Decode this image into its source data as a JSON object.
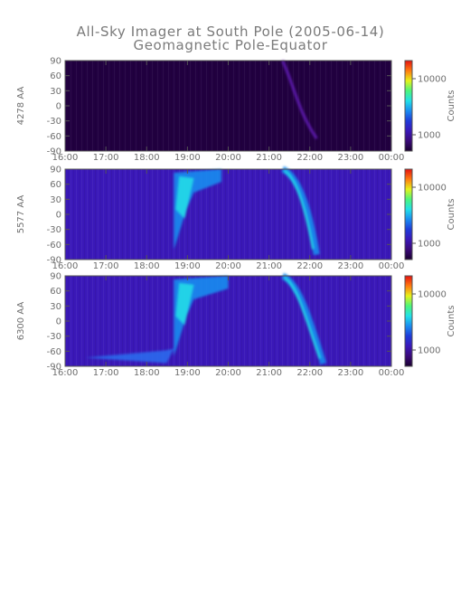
{
  "figure": {
    "title": "All-Sky Imager at South Pole (2005-06-14)",
    "subtitle": "Geomagnetic Pole-Equator"
  },
  "colors": {
    "background_dark": "#210040",
    "base_purple": "#3a18b8",
    "colormap": [
      "#1a0030",
      "#3a0a78",
      "#3a18b8",
      "#1f3bd8",
      "#1a8cf0",
      "#22e0e8",
      "#4cf57a",
      "#e6f21a",
      "#ff7a10",
      "#e41010"
    ]
  },
  "chart_data": [
    {
      "type": "heatmap",
      "panel": "4278",
      "ylabel": "4278 AA",
      "x_ticks": [
        "16:00",
        "17:00",
        "18:00",
        "19:00",
        "20:00",
        "21:00",
        "22:00",
        "23:00",
        "00:00"
      ],
      "y_ticks": [
        "90",
        "60",
        "30",
        "0",
        "-30",
        "-60",
        "-90"
      ],
      "ylim": [
        -90,
        90
      ],
      "xlim": [
        "16:00",
        "00:00"
      ],
      "colorbar": {
        "label": "Counts",
        "ticks": [
          "10000",
          "1000"
        ],
        "scale": "log"
      },
      "features": [
        {
          "description": "faint auroral arc",
          "time_range": [
            "21:20",
            "22:10"
          ],
          "lat_range": [
            -65,
            90
          ]
        }
      ]
    },
    {
      "type": "heatmap",
      "panel": "5577",
      "ylabel": "5577 AA",
      "x_ticks": [
        "16:00",
        "17:00",
        "18:00",
        "19:00",
        "20:00",
        "21:00",
        "22:00",
        "23:00",
        "00:00"
      ],
      "y_ticks": [
        "90",
        "60",
        "30",
        "0",
        "-30",
        "-60",
        "-90"
      ],
      "ylim": [
        -90,
        90
      ],
      "xlim": [
        "16:00",
        "00:00"
      ],
      "colorbar": {
        "label": "Counts",
        "ticks": [
          "10000",
          "1000"
        ],
        "scale": "log"
      },
      "features": [
        {
          "description": "poleward expansion onset",
          "time_range": [
            "18:40",
            "19:50"
          ],
          "lat_range": [
            -70,
            90
          ]
        },
        {
          "description": "equatorward arc",
          "time_range": [
            "21:20",
            "22:10"
          ],
          "lat_range": [
            -80,
            90
          ]
        }
      ]
    },
    {
      "type": "heatmap",
      "panel": "6300",
      "ylabel": "6300 AA",
      "x_ticks": [
        "16:00",
        "17:00",
        "18:00",
        "19:00",
        "20:00",
        "21:00",
        "22:00",
        "23:00",
        "00:00"
      ],
      "y_ticks": [
        "90",
        "60",
        "30",
        "0",
        "-30",
        "-60",
        "-90"
      ],
      "ylim": [
        -90,
        90
      ],
      "xlim": [
        "16:00",
        "00:00"
      ],
      "colorbar": {
        "label": "Counts",
        "ticks": [
          "10000",
          "1000"
        ],
        "scale": "log"
      },
      "features": [
        {
          "description": "equatorward band",
          "time_range": [
            "16:30",
            "18:40"
          ],
          "lat_range": [
            -80,
            -55
          ]
        },
        {
          "description": "poleward expansion onset",
          "time_range": [
            "18:40",
            "20:00"
          ],
          "lat_range": [
            -70,
            90
          ]
        },
        {
          "description": "equatorward arc",
          "time_range": [
            "21:20",
            "22:20"
          ],
          "lat_range": [
            -85,
            90
          ]
        }
      ]
    }
  ]
}
